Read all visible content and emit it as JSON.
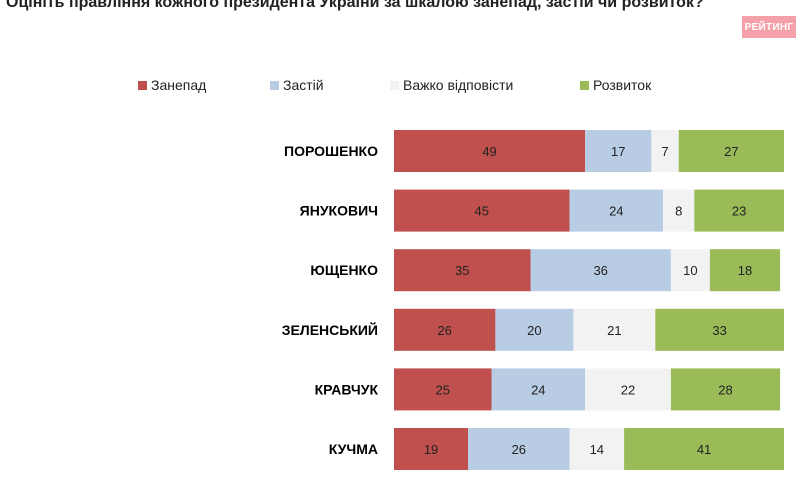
{
  "chart_data": {
    "type": "bar",
    "orientation": "horizontal",
    "stacked": true,
    "title": "Оцініть правління кожного президента України за шкалою занепад, застій чи розвиток?",
    "categories": [
      "ПОРОШЕНКО",
      "ЯНУКОВИЧ",
      "ЮЩЕНКО",
      "ЗЕЛЕНСЬКИЙ",
      "КРАВЧУК",
      "КУЧМА"
    ],
    "series": [
      {
        "name": "Занепад",
        "color": "#c0504d",
        "values": [
          49,
          45,
          35,
          26,
          25,
          19
        ]
      },
      {
        "name": "Застій",
        "color": "#b8cce4",
        "values": [
          17,
          24,
          36,
          20,
          24,
          26
        ]
      },
      {
        "name": "Важко відповісти",
        "color": "#f2f2f2",
        "values": [
          7,
          8,
          10,
          21,
          22,
          14
        ]
      },
      {
        "name": "Розвиток",
        "color": "#9bbb59",
        "values": [
          27,
          23,
          18,
          33,
          28,
          41
        ]
      }
    ],
    "xlim": [
      0,
      100
    ],
    "legend_position": "top",
    "grid": false
  },
  "logo_text": "РЕЙТИНГ"
}
